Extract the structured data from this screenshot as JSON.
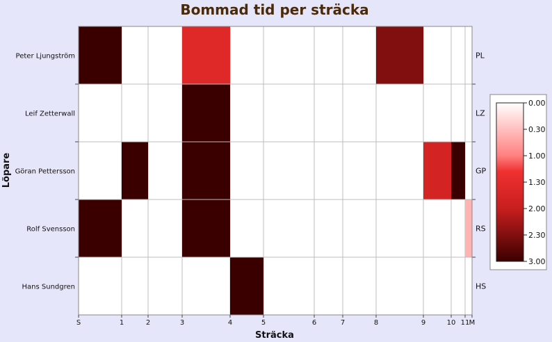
{
  "chart_data": {
    "type": "heatmap",
    "title": "Bommad tid per sträcka",
    "xlabel": "Sträcka",
    "ylabel": "Löpare",
    "x_ticks": [
      "S",
      "1",
      "2",
      "3",
      "4",
      "5",
      "6",
      "7",
      "8",
      "9",
      "10",
      "11",
      "M"
    ],
    "x_positions": [
      0,
      1,
      2,
      3,
      4,
      5,
      6,
      7,
      8,
      9,
      10,
      11,
      11.3
    ],
    "runners": [
      {
        "name": "Peter Ljungström",
        "abbr": "PL",
        "cells": [
          {
            "from": 0,
            "to": 1,
            "value": 3.0
          },
          {
            "from": 3,
            "to": 4,
            "value": 1.6
          },
          {
            "from": 8,
            "to": 9,
            "value": 2.5
          }
        ]
      },
      {
        "name": "Leif Zetterwall",
        "abbr": "LZ",
        "cells": [
          {
            "from": 3,
            "to": 4,
            "value": 3.0
          }
        ]
      },
      {
        "name": "Göran Pettersson",
        "abbr": "GP",
        "cells": [
          {
            "from": 1,
            "to": 2,
            "value": 3.0
          },
          {
            "from": 3,
            "to": 4,
            "value": 3.0
          },
          {
            "from": 9,
            "to": 10,
            "value": 1.8
          },
          {
            "from": 10,
            "to": 11,
            "value": 3.0
          }
        ]
      },
      {
        "name": "Rolf Svensson",
        "abbr": "RS",
        "cells": [
          {
            "from": 0,
            "to": 1,
            "value": 3.0
          },
          {
            "from": 3,
            "to": 4,
            "value": 3.0
          },
          {
            "from": 11,
            "to": 11.3,
            "value": 0.6
          }
        ]
      },
      {
        "name": "Hans Sundgren",
        "abbr": "HS",
        "cells": [
          {
            "from": 4,
            "to": 5,
            "value": 3.0
          }
        ]
      }
    ],
    "color_scale": {
      "min": 0,
      "max": 3,
      "ticks": [
        "0.00",
        "0.30",
        "1.00",
        "1.30",
        "2.00",
        "2.30",
        "3.00"
      ],
      "stops": [
        {
          "value": 0.0,
          "color": "#ffffff"
        },
        {
          "value": 1.0,
          "color": "#ff8080"
        },
        {
          "value": 1.3,
          "color": "#f03030"
        },
        {
          "value": 2.0,
          "color": "#c81e1e"
        },
        {
          "value": 3.0,
          "color": "#3a0000"
        }
      ]
    },
    "grid": true,
    "legend": "right"
  }
}
